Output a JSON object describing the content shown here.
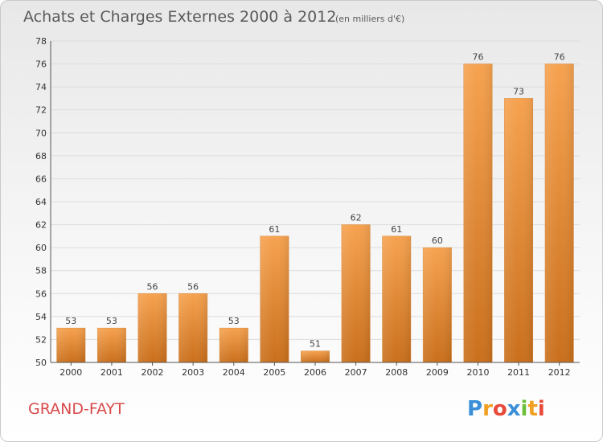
{
  "chart_data": {
    "type": "bar",
    "title": "Achats et Charges Externes 2000 à 2012",
    "subtitle": "(en milliers d'€)",
    "xlabel": "",
    "ylabel": "",
    "categories": [
      "2000",
      "2001",
      "2002",
      "2003",
      "2004",
      "2005",
      "2006",
      "2007",
      "2008",
      "2009",
      "2010",
      "2011",
      "2012"
    ],
    "values": [
      53,
      53,
      56,
      56,
      53,
      61,
      51,
      62,
      61,
      60,
      76,
      73,
      76
    ],
    "ylim": [
      50,
      78
    ],
    "yticks": [
      50,
      52,
      54,
      56,
      58,
      60,
      62,
      64,
      66,
      68,
      70,
      72,
      74,
      76,
      78
    ],
    "grid": true,
    "bar_color": "#f0933a"
  },
  "footer": {
    "place": "GRAND-FAYT",
    "brand_letters": [
      {
        "ch": "P",
        "color": "#3a8fd8"
      },
      {
        "ch": "r",
        "color": "#f0a020"
      },
      {
        "ch": "o",
        "color": "#e84a3a"
      },
      {
        "ch": "x",
        "color": "#3a8fd8"
      },
      {
        "ch": "i",
        "color": "#6cbf3a"
      },
      {
        "ch": "t",
        "color": "#f0a020"
      },
      {
        "ch": "i",
        "color": "#e84a3a"
      }
    ]
  }
}
